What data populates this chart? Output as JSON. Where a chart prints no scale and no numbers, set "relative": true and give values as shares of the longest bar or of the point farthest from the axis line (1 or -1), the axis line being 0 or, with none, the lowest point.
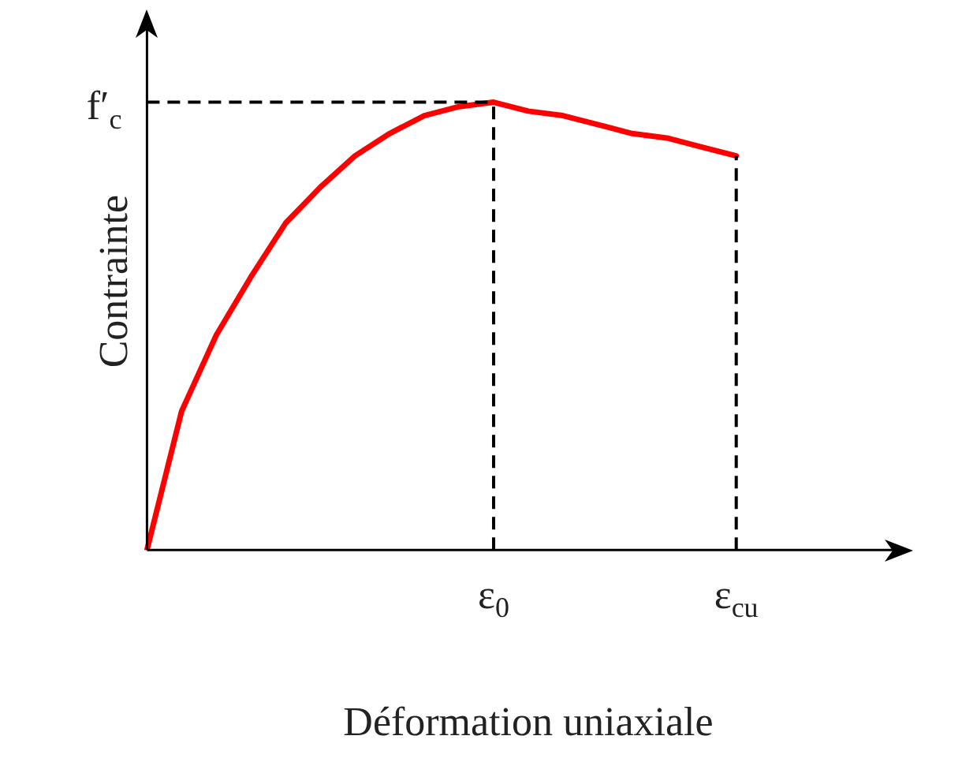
{
  "chart_data": {
    "type": "line",
    "xlabel": "Déformation uniaxiale",
    "ylabel": "Contrainte",
    "relative": true,
    "categories": [
      null,
      null,
      null,
      null,
      null,
      null,
      null,
      null,
      null,
      null,
      "ε$_{0}$",
      null,
      null,
      null,
      null,
      null,
      null,
      "ε$_{cu}$",
      null,
      null,
      null,
      null,
      null
    ],
    "series": [
      {
        "color": "#ff0000",
        "values": [
          0,
          0.31,
          0.48,
          0.61,
          0.73,
          0.81,
          0.88,
          0.93,
          0.97,
          0.99,
          1,
          0.98,
          0.97,
          0.95,
          0.93,
          0.92,
          0.9,
          0.88,
          null,
          null,
          null,
          null,
          null
        ]
      }
    ],
    "ref_lines": [
      {
        "axis": "y",
        "value": 1,
        "label": "f′$_{c}$",
        "line_style": "dashed",
        "color": "#000000"
      }
    ],
    "grid": "x",
    "legend": false,
    "marker": "none",
    "line_style": "solid"
  }
}
